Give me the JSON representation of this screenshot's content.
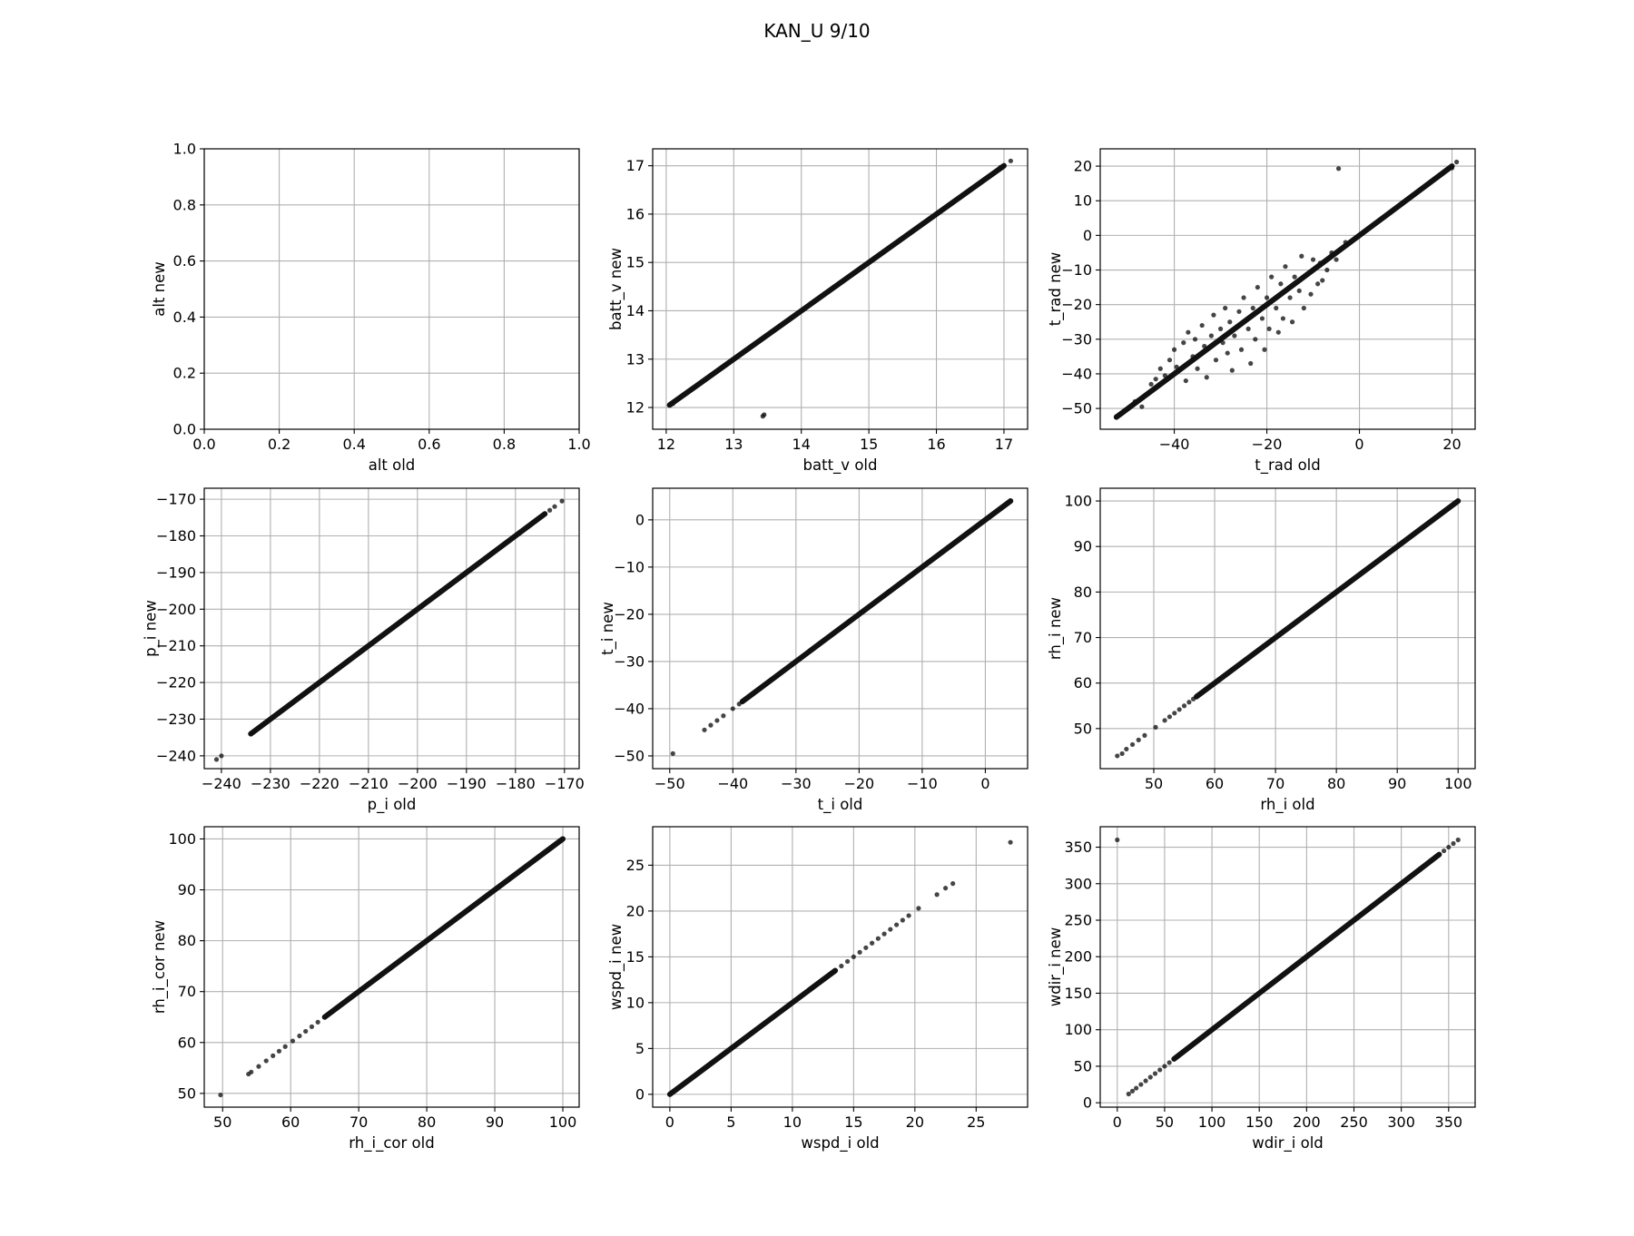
{
  "figure": {
    "title": "KAN_U 9/10"
  },
  "style": {
    "point_color": "#111111",
    "grid_color": "#b0b0b0",
    "axis_color": "#000000"
  },
  "chart_data": [
    {
      "type": "scatter",
      "xlabel": "alt old",
      "ylabel": "alt new",
      "xlim": [
        0,
        1
      ],
      "ylim": [
        0,
        1
      ],
      "xticks": [
        0.0,
        0.2,
        0.4,
        0.6,
        0.8,
        1.0
      ],
      "yticks": [
        0.0,
        0.2,
        0.4,
        0.6,
        0.8,
        1.0
      ],
      "tick_decimals": 1,
      "grid": true,
      "points": []
    },
    {
      "type": "scatter",
      "xlabel": "batt_v old",
      "ylabel": "batt_v new",
      "xlim": [
        11.8,
        17.35
      ],
      "ylim": [
        11.55,
        17.35
      ],
      "xticks": [
        12,
        13,
        14,
        15,
        16,
        17
      ],
      "yticks": [
        12,
        13,
        14,
        15,
        16,
        17
      ],
      "grid": true,
      "line": {
        "x0": 12.05,
        "x1": 17.0,
        "y0": 12.05,
        "y1": 17.0
      },
      "points": [
        [
          12.05,
          12.05
        ],
        [
          12.1,
          12.08
        ],
        [
          13.45,
          11.85
        ],
        [
          13.43,
          11.82
        ],
        [
          16.95,
          16.97
        ],
        [
          17.1,
          17.1
        ]
      ]
    },
    {
      "type": "scatter",
      "xlabel": "t_rad old",
      "ylabel": "t_rad new",
      "xlim": [
        -56,
        25
      ],
      "ylim": [
        -56,
        25
      ],
      "xticks": [
        -40,
        -20,
        0,
        20
      ],
      "yticks": [
        -50,
        -40,
        -30,
        -20,
        -10,
        0,
        10,
        20
      ],
      "grid": true,
      "line": {
        "x0": -52.5,
        "x1": 20.0,
        "y0": -52.5,
        "y1": 20.0
      },
      "points": [
        [
          -52.5,
          -52.3
        ],
        [
          -51.5,
          -51.6
        ],
        [
          -48.5,
          -48.0
        ],
        [
          -47,
          -49.5
        ],
        [
          -45,
          -43
        ],
        [
          -44,
          -41.5
        ],
        [
          -43,
          -38.5
        ],
        [
          -42,
          -40.5
        ],
        [
          -41,
          -36
        ],
        [
          -40,
          -33
        ],
        [
          -39.5,
          -38
        ],
        [
          -38,
          -31
        ],
        [
          -37.5,
          -42
        ],
        [
          -37,
          -28
        ],
        [
          -36,
          -35
        ],
        [
          -35.5,
          -30
        ],
        [
          -35,
          -38.5
        ],
        [
          -34,
          -26
        ],
        [
          -33.5,
          -32
        ],
        [
          -33,
          -41
        ],
        [
          -32,
          -29
        ],
        [
          -31.5,
          -23
        ],
        [
          -31,
          -36
        ],
        [
          -30,
          -27
        ],
        [
          -29.5,
          -31
        ],
        [
          -29,
          -21
        ],
        [
          -28.5,
          -34
        ],
        [
          -28,
          -25
        ],
        [
          -27.5,
          -39
        ],
        [
          -27,
          -29
        ],
        [
          -26,
          -22
        ],
        [
          -25.5,
          -33
        ],
        [
          -25,
          -18
        ],
        [
          -24,
          -27
        ],
        [
          -23.5,
          -37
        ],
        [
          -23,
          -21
        ],
        [
          -22.5,
          -30
        ],
        [
          -22,
          -15
        ],
        [
          -21,
          -24
        ],
        [
          -20.5,
          -33
        ],
        [
          -20,
          -18
        ],
        [
          -19.5,
          -27
        ],
        [
          -19,
          -12
        ],
        [
          -18,
          -21
        ],
        [
          -17.5,
          -28
        ],
        [
          -17,
          -14
        ],
        [
          -16.5,
          -24
        ],
        [
          -16,
          -9
        ],
        [
          -15,
          -18
        ],
        [
          -14.5,
          -25
        ],
        [
          -14,
          -12
        ],
        [
          -13,
          -16
        ],
        [
          -12.5,
          -6
        ],
        [
          -12,
          -21
        ],
        [
          -11,
          -11
        ],
        [
          -10.5,
          -17
        ],
        [
          -10,
          -7
        ],
        [
          -9,
          -14
        ],
        [
          -8.5,
          -8
        ],
        [
          -8,
          -13
        ],
        [
          -7,
          -10
        ],
        [
          -6,
          -5
        ],
        [
          -5,
          -7
        ],
        [
          -4.5,
          19.3
        ],
        [
          -3,
          -2
        ],
        [
          20.0,
          19.5
        ],
        [
          21.0,
          21.2
        ]
      ]
    },
    {
      "type": "scatter",
      "xlabel": "p_i old",
      "ylabel": "p_i new",
      "xlim": [
        -243.5,
        -167
      ],
      "ylim": [
        -243.5,
        -167
      ],
      "xticks": [
        -240,
        -230,
        -220,
        -210,
        -200,
        -190,
        -180,
        -170
      ],
      "yticks": [
        -240,
        -230,
        -220,
        -210,
        -200,
        -190,
        -180,
        -170
      ],
      "grid": true,
      "line": {
        "x0": -234,
        "x1": -174,
        "y0": -234,
        "y1": -174
      },
      "points": [
        [
          -241,
          -241
        ],
        [
          -240,
          -240
        ],
        [
          -234,
          -234
        ],
        [
          -232,
          -232
        ],
        [
          -231,
          -231
        ],
        [
          -173,
          -173
        ],
        [
          -172,
          -172
        ],
        [
          -170.5,
          -170.5
        ]
      ]
    },
    {
      "type": "scatter",
      "xlabel": "t_i old",
      "ylabel": "t_i new",
      "xlim": [
        -52.7,
        6.7
      ],
      "ylim": [
        -52.7,
        6.7
      ],
      "xticks": [
        -50,
        -40,
        -30,
        -20,
        -10,
        0
      ],
      "yticks": [
        -50,
        -40,
        -30,
        -20,
        -10,
        0
      ],
      "grid": true,
      "line": {
        "x0": -38.5,
        "x1": 4.0,
        "y0": -38.5,
        "y1": 4.0
      },
      "points": [
        [
          -49.5,
          -49.5
        ],
        [
          -44.5,
          -44.5
        ],
        [
          -43.5,
          -43.5
        ],
        [
          -42.5,
          -42.5
        ],
        [
          -41.5,
          -41.5
        ],
        [
          -40,
          -40
        ],
        [
          -39,
          -39
        ]
      ]
    },
    {
      "type": "scatter",
      "xlabel": "rh_i old",
      "ylabel": "rh_i new",
      "xlim": [
        41.2,
        102.8
      ],
      "ylim": [
        41.2,
        102.8
      ],
      "xticks": [
        50,
        60,
        70,
        80,
        90,
        100
      ],
      "yticks": [
        50,
        60,
        70,
        80,
        90,
        100
      ],
      "grid": true,
      "line": {
        "x0": 57,
        "x1": 100,
        "y0": 57,
        "y1": 100
      },
      "points": [
        [
          44,
          44
        ],
        [
          44.8,
          44.5
        ],
        [
          45.5,
          45.5
        ],
        [
          46.5,
          46.5
        ],
        [
          47.5,
          47.5
        ],
        [
          48.5,
          48.5
        ],
        [
          50.3,
          50.3
        ],
        [
          51.8,
          51.8
        ],
        [
          52.6,
          52.6
        ],
        [
          53.4,
          53.4
        ],
        [
          54.2,
          54.2
        ],
        [
          55,
          55
        ],
        [
          55.8,
          55.8
        ],
        [
          56.5,
          56.5
        ]
      ]
    },
    {
      "type": "scatter",
      "xlabel": "rh_i_cor old",
      "ylabel": "rh_i_cor new",
      "xlim": [
        47.3,
        102.4
      ],
      "ylim": [
        47.3,
        102.4
      ],
      "xticks": [
        50,
        60,
        70,
        80,
        90,
        100
      ],
      "yticks": [
        50,
        60,
        70,
        80,
        90,
        100
      ],
      "grid": true,
      "line": {
        "x0": 65,
        "x1": 100,
        "y0": 65,
        "y1": 100
      },
      "points": [
        [
          49.7,
          49.7
        ],
        [
          53.8,
          53.8
        ],
        [
          54.2,
          54.2
        ],
        [
          55.3,
          55.3
        ],
        [
          56.4,
          56.4
        ],
        [
          57.4,
          57.4
        ],
        [
          58.3,
          58.3
        ],
        [
          59.2,
          59.2
        ],
        [
          60.3,
          60.3
        ],
        [
          61.3,
          61.3
        ],
        [
          62.2,
          62.2
        ],
        [
          63.1,
          63.1
        ],
        [
          64.0,
          64.0
        ]
      ]
    },
    {
      "type": "scatter",
      "xlabel": "wspd_i old",
      "ylabel": "wspd_i new",
      "xlim": [
        -1.4,
        29.2
      ],
      "ylim": [
        -1.4,
        29.2
      ],
      "xticks": [
        0,
        5,
        10,
        15,
        20,
        25
      ],
      "yticks": [
        0,
        5,
        10,
        15,
        20,
        25
      ],
      "grid": true,
      "line": {
        "x0": 0,
        "x1": 13.5,
        "y0": 0,
        "y1": 13.5
      },
      "points": [
        [
          14,
          14
        ],
        [
          14.5,
          14.5
        ],
        [
          15,
          15
        ],
        [
          15.5,
          15.5
        ],
        [
          16,
          16
        ],
        [
          16.5,
          16.5
        ],
        [
          17,
          17
        ],
        [
          17.5,
          17.5
        ],
        [
          18,
          18
        ],
        [
          18.5,
          18.5
        ],
        [
          19,
          19
        ],
        [
          19.5,
          19.5
        ],
        [
          20.3,
          20.3
        ],
        [
          21.8,
          21.8
        ],
        [
          22.5,
          22.5
        ],
        [
          23.1,
          23
        ],
        [
          27.8,
          27.5
        ]
      ]
    },
    {
      "type": "scatter",
      "xlabel": "wdir_i old",
      "ylabel": "wdir_i new",
      "xlim": [
        -18,
        378
      ],
      "ylim": [
        -6,
        378
      ],
      "xticks": [
        0,
        50,
        100,
        150,
        200,
        250,
        300,
        350
      ],
      "yticks": [
        0,
        50,
        100,
        150,
        200,
        250,
        300,
        350
      ],
      "grid": true,
      "line": {
        "x0": 60,
        "x1": 340,
        "y0": 60,
        "y1": 340
      },
      "points": [
        [
          0,
          360
        ],
        [
          12,
          12
        ],
        [
          16,
          16
        ],
        [
          20,
          20
        ],
        [
          25,
          25
        ],
        [
          30,
          30
        ],
        [
          35,
          35
        ],
        [
          40,
          40
        ],
        [
          45,
          45
        ],
        [
          50,
          50
        ],
        [
          55,
          55
        ],
        [
          345,
          345
        ],
        [
          350,
          350
        ],
        [
          355,
          355
        ],
        [
          360,
          360
        ]
      ]
    }
  ]
}
